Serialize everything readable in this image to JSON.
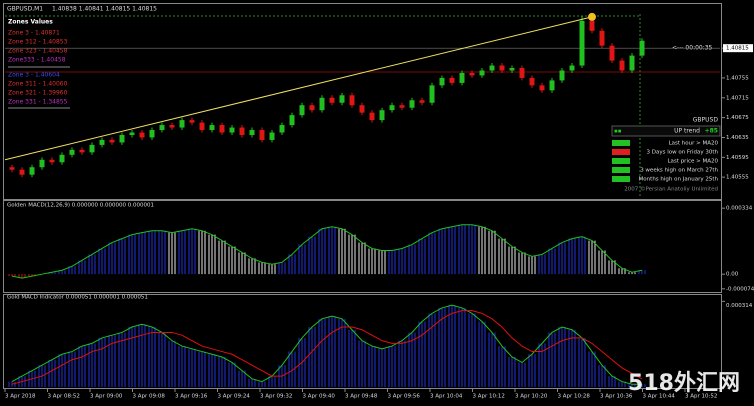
{
  "header": {
    "symbol": "GBPUSD,M1",
    "quote": "1.40838 1.40841 1.40815 1.40815"
  },
  "zones": {
    "title": "Zones Values",
    "upper": [
      "Zone 3 - 1.40871",
      "Zone 312 - 1.40853",
      "Zone 323 - 1.40458",
      "Zone333 - 1.40458"
    ],
    "lower": [
      "Zone 3 - 1.40604",
      "Zone 311 - 1.40060",
      "Zone 321 - 1.39960",
      "Zone 331 - 1.34855"
    ]
  },
  "countdown": "<--- 00:00:35",
  "info_panel": {
    "symbol": "GBPUSD",
    "trend": "UP trend",
    "strength": "+85",
    "rows": [
      "Last hour > MA20",
      "3 Days low on Friday 30th",
      "Last price > MA20",
      "3 weeks high on March 27th",
      "Months high on January 25th"
    ]
  },
  "copyright": "2007 ©Persian Anatoliy Unlimited",
  "time_labels": [
    "3 Apr 2018",
    "3 Apr 08:52",
    "3 Apr 09:00",
    "3 Apr 09:08",
    "3 Apr 09:16",
    "3 Apr 09:24",
    "3 Apr 09:32",
    "3 Apr 09:40",
    "3 Apr 09:48",
    "3 Apr 09:56",
    "3 Apr 10:04",
    "3 Apr 10:12",
    "3 Apr 10:20",
    "3 Apr 10:28",
    "3 Apr 10:36",
    "3 Apr 10:44",
    "3 Apr 10:52"
  ],
  "watermark": "518外汇网",
  "chart_data": [
    {
      "type": "candlestick",
      "ylim": [
        1.40513,
        1.40902
      ],
      "yticks": [
        1.40815,
        1.40755,
        1.40715,
        1.40675,
        1.40635,
        1.40595,
        1.40555
      ],
      "trendline": [
        1.4059,
        1.40878
      ],
      "level": 1.40767,
      "candles": [
        [
          1.40575,
          1.4058,
          1.40565,
          1.4057
        ],
        [
          1.4057,
          1.40575,
          1.40555,
          1.4056
        ],
        [
          1.4056,
          1.4058,
          1.40555,
          1.40575
        ],
        [
          1.40575,
          1.40595,
          1.4057,
          1.4059
        ],
        [
          1.4059,
          1.40595,
          1.4058,
          1.40585
        ],
        [
          1.40585,
          1.40605,
          1.4058,
          1.406
        ],
        [
          1.406,
          1.40615,
          1.40595,
          1.4061
        ],
        [
          1.4061,
          1.40615,
          1.406,
          1.40605
        ],
        [
          1.40605,
          1.40625,
          1.406,
          1.4062
        ],
        [
          1.4062,
          1.40635,
          1.40615,
          1.4063
        ],
        [
          1.4063,
          1.40635,
          1.4062,
          1.40625
        ],
        [
          1.40625,
          1.40645,
          1.4062,
          1.4064
        ],
        [
          1.4064,
          1.4065,
          1.40635,
          1.40645
        ],
        [
          1.40645,
          1.4065,
          1.4063,
          1.40635
        ],
        [
          1.40635,
          1.40655,
          1.4063,
          1.4065
        ],
        [
          1.4065,
          1.40665,
          1.40645,
          1.4066
        ],
        [
          1.4066,
          1.40665,
          1.4065,
          1.40655
        ],
        [
          1.40655,
          1.40675,
          1.4065,
          1.4067
        ],
        [
          1.4067,
          1.40675,
          1.4066,
          1.40665
        ],
        [
          1.40665,
          1.4067,
          1.40645,
          1.4065
        ],
        [
          1.4065,
          1.40665,
          1.40645,
          1.4066
        ],
        [
          1.4066,
          1.40665,
          1.4064,
          1.40645
        ],
        [
          1.40645,
          1.4066,
          1.4064,
          1.40655
        ],
        [
          1.40655,
          1.4066,
          1.40635,
          1.4064
        ],
        [
          1.4064,
          1.40655,
          1.40635,
          1.4065
        ],
        [
          1.4065,
          1.40655,
          1.40625,
          1.4063
        ],
        [
          1.4063,
          1.4065,
          1.40625,
          1.40645
        ],
        [
          1.40645,
          1.40665,
          1.4064,
          1.4066
        ],
        [
          1.4066,
          1.40685,
          1.40655,
          1.4068
        ],
        [
          1.4068,
          1.40705,
          1.40675,
          1.407
        ],
        [
          1.407,
          1.40705,
          1.40685,
          1.4069
        ],
        [
          1.4069,
          1.4072,
          1.40685,
          1.40715
        ],
        [
          1.40715,
          1.4072,
          1.407,
          1.40705
        ],
        [
          1.40705,
          1.40725,
          1.407,
          1.4072
        ],
        [
          1.4072,
          1.40725,
          1.40695,
          1.407
        ],
        [
          1.407,
          1.40705,
          1.4068,
          1.40685
        ],
        [
          1.40685,
          1.4069,
          1.40665,
          1.4067
        ],
        [
          1.4067,
          1.40695,
          1.40665,
          1.4069
        ],
        [
          1.4069,
          1.40705,
          1.40685,
          1.407
        ],
        [
          1.407,
          1.40705,
          1.4069,
          1.40695
        ],
        [
          1.40695,
          1.40715,
          1.4069,
          1.4071
        ],
        [
          1.4071,
          1.40715,
          1.407,
          1.40705
        ],
        [
          1.40705,
          1.40745,
          1.407,
          1.4074
        ],
        [
          1.4074,
          1.4076,
          1.40735,
          1.40755
        ],
        [
          1.40755,
          1.4076,
          1.4074,
          1.40745
        ],
        [
          1.40745,
          1.4077,
          1.4074,
          1.40765
        ],
        [
          1.40765,
          1.4077,
          1.40755,
          1.4076
        ],
        [
          1.4076,
          1.40775,
          1.40755,
          1.4077
        ],
        [
          1.4077,
          1.40785,
          1.40765,
          1.4078
        ],
        [
          1.4078,
          1.40785,
          1.40765,
          1.4077
        ],
        [
          1.4077,
          1.4078,
          1.40765,
          1.40775
        ],
        [
          1.40775,
          1.4078,
          1.4075,
          1.40755
        ],
        [
          1.40755,
          1.4076,
          1.40735,
          1.4074
        ],
        [
          1.4074,
          1.40745,
          1.40725,
          1.4073
        ],
        [
          1.4073,
          1.40755,
          1.40725,
          1.4075
        ],
        [
          1.4075,
          1.40775,
          1.40745,
          1.4077
        ],
        [
          1.4077,
          1.40785,
          1.40765,
          1.4078
        ],
        [
          1.4078,
          1.4088,
          1.40775,
          1.4087
        ],
        [
          1.4087,
          1.40875,
          1.40845,
          1.4085
        ],
        [
          1.4085,
          1.40855,
          1.40815,
          1.4082
        ],
        [
          1.4082,
          1.40825,
          1.40785,
          1.4079
        ],
        [
          1.4079,
          1.40795,
          1.40765,
          1.4077
        ],
        [
          1.4077,
          1.40805,
          1.40765,
          1.408
        ],
        [
          1.408,
          1.40835,
          1.40795,
          1.4083
        ]
      ]
    },
    {
      "type": "histogram",
      "title": "Golden MACD(12,26,9) 0.000000 0.000000 0.000001",
      "ylim": [
        -8e-05,
        0.00035
      ],
      "yticks": [
        0.000334,
        {
          "value": 0,
          "label": "0.00"
        },
        -7.4e-05
      ],
      "values": [
        -1e-05,
        -2e-05,
        -1e-05,
        0,
        1e-05,
        2e-05,
        4e-05,
        7e-05,
        0.0001,
        0.00013,
        0.00016,
        0.00018,
        0.0002,
        0.00021,
        0.00022,
        0.00022,
        0.00021,
        0.00022,
        0.00023,
        0.00022,
        0.0002,
        0.00017,
        0.00014,
        0.00011,
        8e-05,
        6e-05,
        5e-05,
        6e-05,
        0.0001,
        0.00015,
        0.00019,
        0.00023,
        0.00024,
        0.00023,
        0.0002,
        0.00016,
        0.00013,
        0.00012,
        0.00012,
        0.00013,
        0.00015,
        0.00018,
        0.00021,
        0.00023,
        0.00024,
        0.00025,
        0.00025,
        0.00024,
        0.00022,
        0.00018,
        0.00014,
        0.00011,
        9e-05,
        0.0001,
        0.00013,
        0.00016,
        0.00018,
        0.00019,
        0.00017,
        0.00012,
        7e-05,
        3e-05,
        1e-05,
        2e-05
      ]
    },
    {
      "type": "macd",
      "title": "Gold MACD Indicator 0.000051 0.000001 0.000051",
      "ylim": [
        0,
        0.00033
      ],
      "yticks": [
        0.000314
      ],
      "series": [
        {
          "color": "#22c022",
          "values": [
            2e-05,
            4e-05,
            6e-05,
            8e-05,
            0.0001,
            0.00012,
            0.00013,
            0.00015,
            0.00016,
            0.00018,
            0.00019,
            0.0002,
            0.00022,
            0.00023,
            0.00022,
            0.0002,
            0.00017,
            0.00015,
            0.00014,
            0.00013,
            0.00012,
            0.00011,
            9e-05,
            6e-05,
            3e-05,
            2e-05,
            4e-05,
            8e-05,
            0.00013,
            0.00018,
            0.00022,
            0.00025,
            0.00026,
            0.00025,
            0.00021,
            0.00017,
            0.00015,
            0.00014,
            0.00015,
            0.00017,
            0.0002,
            0.00024,
            0.00027,
            0.00029,
            0.0003,
            0.00029,
            0.00027,
            0.00024,
            0.0002,
            0.00015,
            0.00011,
            9e-05,
            0.00012,
            0.00016,
            0.0002,
            0.00022,
            0.00021,
            0.00018,
            0.00013,
            8e-05,
            4e-05,
            2e-05,
            1e-05,
            1e-05
          ]
        },
        {
          "color": "#e01010",
          "values": [
            1e-05,
            2e-05,
            3e-05,
            4e-05,
            6e-05,
            8e-05,
            0.0001,
            0.00011,
            0.00013,
            0.00014,
            0.00016,
            0.00017,
            0.00018,
            0.00019,
            0.0002,
            0.0002,
            0.0002,
            0.00019,
            0.00017,
            0.00015,
            0.00014,
            0.00013,
            0.00012,
            0.0001,
            8e-05,
            6e-05,
            4e-05,
            4e-05,
            6e-05,
            9e-05,
            0.00013,
            0.00017,
            0.0002,
            0.00022,
            0.00022,
            0.00021,
            0.00019,
            0.00017,
            0.00016,
            0.00016,
            0.00017,
            0.00019,
            0.00022,
            0.00025,
            0.00027,
            0.00028,
            0.00028,
            0.00027,
            0.00025,
            0.00022,
            0.00018,
            0.00015,
            0.00013,
            0.00013,
            0.00015,
            0.00017,
            0.00018,
            0.00018,
            0.00016,
            0.00013,
            0.0001,
            7e-05,
            5e-05,
            3e-05
          ]
        }
      ]
    }
  ]
}
